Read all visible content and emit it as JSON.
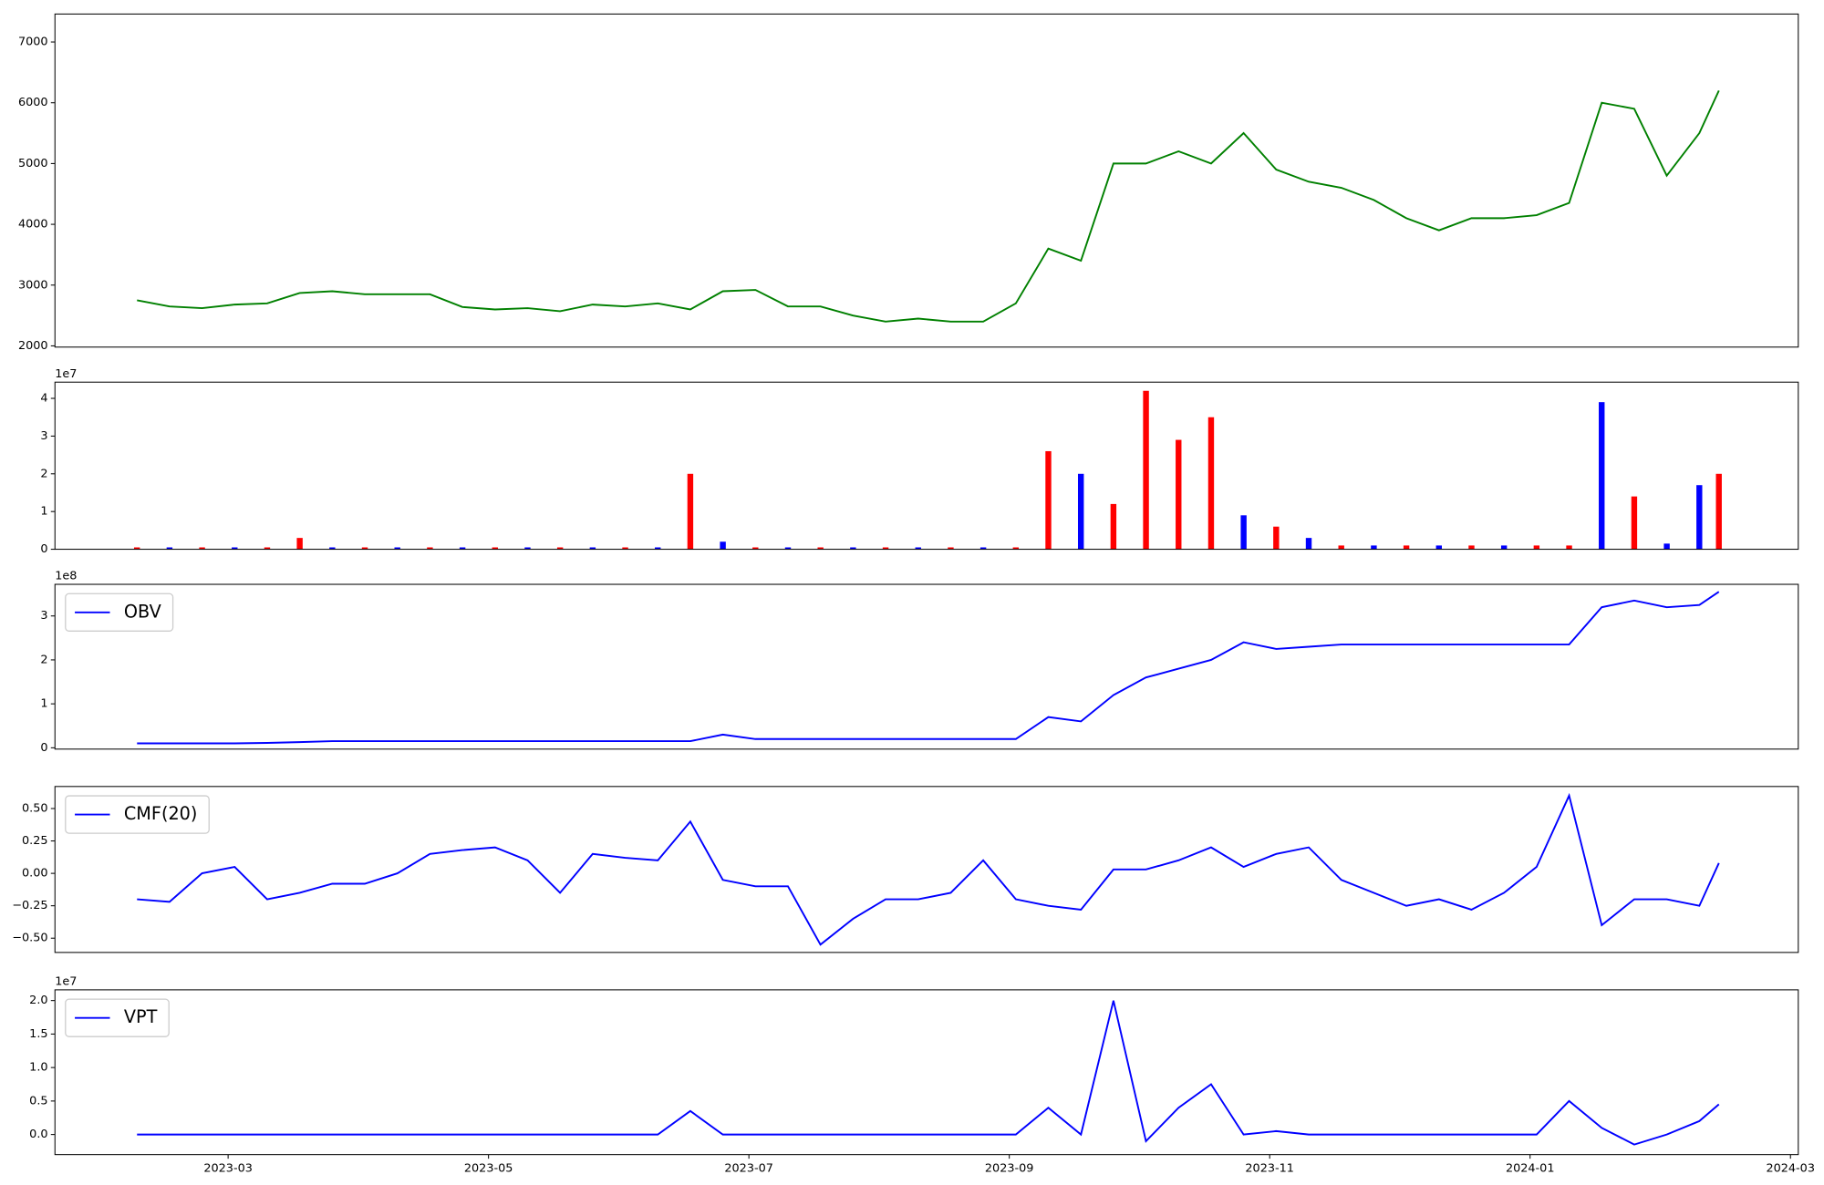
{
  "chart_data": [
    {
      "type": "line",
      "xlim": [
        0.67,
        14.06
      ],
      "ylim": [
        1980,
        7460
      ],
      "yticks": [
        2000,
        3000,
        4000,
        5000,
        6000,
        7000
      ],
      "x": [
        1.3,
        1.55,
        1.8,
        2.05,
        2.3,
        2.55,
        2.8,
        3.05,
        3.3,
        3.55,
        3.8,
        4.05,
        4.3,
        4.55,
        4.8,
        5.05,
        5.3,
        5.55,
        5.8,
        6.05,
        6.3,
        6.55,
        6.8,
        7.05,
        7.3,
        7.55,
        7.8,
        8.05,
        8.3,
        8.55,
        8.8,
        9.05,
        9.3,
        9.55,
        9.8,
        10.05,
        10.3,
        10.55,
        10.8,
        11.05,
        11.3,
        11.55,
        11.8,
        12.05,
        12.3,
        12.55,
        12.8,
        13.05,
        13.3,
        13.45
      ],
      "series": [
        {
          "color": "#008000",
          "values": [
            2750,
            2650,
            2620,
            2680,
            2700,
            2870,
            2900,
            2850,
            2850,
            2850,
            2640,
            2600,
            2620,
            2570,
            2680,
            2650,
            2700,
            2600,
            2900,
            2920,
            2650,
            2650,
            2500,
            2400,
            2450,
            2400,
            2400,
            2700,
            3600,
            3400,
            5000,
            5000,
            5200,
            5000,
            5500,
            4900,
            4700,
            4600,
            4400,
            4100,
            3900,
            4100,
            4100,
            4150,
            4350,
            6000,
            5900,
            4800,
            5500,
            6200
          ]
        }
      ]
    },
    {
      "type": "bar",
      "offset_label": "1e7",
      "xlim": [
        0.67,
        14.06
      ],
      "ylim": [
        0,
        4.43
      ],
      "yticks": [
        0,
        1,
        2,
        3,
        4
      ],
      "x": [
        1.3,
        1.55,
        1.8,
        2.05,
        2.3,
        2.55,
        2.8,
        3.05,
        3.3,
        3.55,
        3.8,
        4.05,
        4.3,
        4.55,
        4.8,
        5.05,
        5.3,
        5.55,
        5.8,
        6.05,
        6.3,
        6.55,
        6.8,
        7.05,
        7.3,
        7.55,
        7.8,
        8.05,
        8.3,
        8.55,
        8.8,
        9.05,
        9.3,
        9.55,
        9.8,
        10.05,
        10.3,
        10.55,
        10.8,
        11.05,
        11.3,
        11.55,
        11.8,
        12.05,
        12.3,
        12.55,
        12.8,
        13.05,
        13.3,
        13.45
      ],
      "series": [
        {
          "values": [
            0.05,
            0.05,
            0.05,
            0.05,
            0.05,
            0.3,
            0.05,
            0.05,
            0.05,
            0.05,
            0.05,
            0.05,
            0.05,
            0.05,
            0.05,
            0.05,
            0.05,
            2.0,
            0.2,
            0.05,
            0.05,
            0.05,
            0.05,
            0.05,
            0.05,
            0.05,
            0.05,
            0.05,
            2.6,
            2.0,
            1.2,
            4.2,
            2.9,
            3.5,
            0.9,
            0.6,
            0.3,
            0.1,
            0.1,
            0.1,
            0.1,
            0.1,
            0.1,
            0.1,
            0.1,
            3.9,
            1.4,
            0.15,
            1.7,
            2.0
          ],
          "colors": [
            "#ff0000",
            "#0000ff",
            "#ff0000",
            "#0000ff",
            "#ff0000",
            "#ff0000",
            "#0000ff",
            "#ff0000",
            "#0000ff",
            "#ff0000",
            "#0000ff",
            "#ff0000",
            "#0000ff",
            "#ff0000",
            "#0000ff",
            "#ff0000",
            "#0000ff",
            "#ff0000",
            "#0000ff",
            "#ff0000",
            "#0000ff",
            "#ff0000",
            "#0000ff",
            "#ff0000",
            "#0000ff",
            "#ff0000",
            "#0000ff",
            "#ff0000",
            "#ff0000",
            "#0000ff",
            "#ff0000",
            "#ff0000",
            "#ff0000",
            "#ff0000",
            "#0000ff",
            "#ff0000",
            "#0000ff",
            "#ff0000",
            "#0000ff",
            "#ff0000",
            "#0000ff",
            "#ff0000",
            "#0000ff",
            "#ff0000",
            "#ff0000",
            "#0000ff",
            "#ff0000",
            "#0000ff",
            "#0000ff",
            "#ff0000"
          ]
        }
      ]
    },
    {
      "type": "line",
      "offset_label": "1e8",
      "legend": "upper left",
      "xlim": [
        0.67,
        14.06
      ],
      "ylim": [
        -0.03,
        3.72
      ],
      "yticks": [
        0,
        1,
        2,
        3
      ],
      "x": [
        1.3,
        1.55,
        1.8,
        2.05,
        2.3,
        2.55,
        2.8,
        3.05,
        3.3,
        3.55,
        3.8,
        4.05,
        4.3,
        4.55,
        4.8,
        5.05,
        5.3,
        5.55,
        5.8,
        6.05,
        6.3,
        6.55,
        6.8,
        7.05,
        7.3,
        7.55,
        7.8,
        8.05,
        8.3,
        8.55,
        8.8,
        9.05,
        9.3,
        9.55,
        9.8,
        10.05,
        10.3,
        10.55,
        10.8,
        11.05,
        11.3,
        11.55,
        11.8,
        12.05,
        12.3,
        12.55,
        12.8,
        13.05,
        13.3,
        13.45
      ],
      "series": [
        {
          "name": "OBV",
          "color": "#0000ff",
          "values": [
            0.1,
            0.1,
            0.1,
            0.1,
            0.11,
            0.13,
            0.15,
            0.15,
            0.15,
            0.15,
            0.15,
            0.15,
            0.15,
            0.15,
            0.15,
            0.15,
            0.15,
            0.15,
            0.3,
            0.2,
            0.2,
            0.2,
            0.2,
            0.2,
            0.2,
            0.2,
            0.2,
            0.2,
            0.7,
            0.6,
            1.2,
            1.6,
            1.8,
            2.0,
            2.4,
            2.25,
            2.3,
            2.35,
            2.35,
            2.35,
            2.35,
            2.35,
            2.35,
            2.35,
            2.35,
            3.2,
            3.35,
            3.2,
            3.25,
            3.55
          ]
        }
      ]
    },
    {
      "type": "line",
      "legend": "upper left",
      "xlim": [
        0.67,
        14.06
      ],
      "ylim": [
        -0.61,
        0.67
      ],
      "yticks": [
        {
          "value": -0.5,
          "label": "−0.50"
        },
        {
          "value": -0.25,
          "label": "−0.25"
        },
        {
          "value": 0,
          "label": "0.00"
        },
        {
          "value": 0.25,
          "label": "0.25"
        },
        {
          "value": 0.5,
          "label": "0.50"
        }
      ],
      "x": [
        1.3,
        1.55,
        1.8,
        2.05,
        2.3,
        2.55,
        2.8,
        3.05,
        3.3,
        3.55,
        3.8,
        4.05,
        4.3,
        4.55,
        4.8,
        5.05,
        5.3,
        5.55,
        5.8,
        6.05,
        6.3,
        6.55,
        6.8,
        7.05,
        7.3,
        7.55,
        7.8,
        8.05,
        8.3,
        8.55,
        8.8,
        9.05,
        9.3,
        9.55,
        9.8,
        10.05,
        10.3,
        10.55,
        10.8,
        11.05,
        11.3,
        11.55,
        11.8,
        12.05,
        12.3,
        12.55,
        12.8,
        13.05,
        13.3,
        13.45
      ],
      "series": [
        {
          "name": "CMF(20)",
          "color": "#0000ff",
          "values": [
            -0.2,
            -0.22,
            0.0,
            0.05,
            -0.2,
            -0.15,
            -0.08,
            -0.08,
            0.0,
            0.15,
            0.18,
            0.2,
            0.1,
            -0.15,
            0.15,
            0.12,
            0.1,
            0.4,
            -0.05,
            -0.1,
            -0.1,
            -0.55,
            -0.35,
            -0.2,
            -0.2,
            -0.15,
            0.1,
            -0.2,
            -0.25,
            -0.28,
            0.03,
            0.03,
            0.1,
            0.2,
            0.05,
            0.15,
            0.2,
            -0.05,
            -0.15,
            -0.25,
            -0.2,
            -0.28,
            -0.15,
            0.05,
            0.6,
            -0.4,
            -0.2,
            -0.2,
            -0.25,
            0.08
          ]
        }
      ]
    },
    {
      "type": "line",
      "offset_label": "1e7",
      "legend": "upper left",
      "xlim": [
        0.67,
        14.06
      ],
      "ylim": [
        -0.3,
        2.16
      ],
      "yticks": [
        {
          "value": 0,
          "label": "0.0"
        },
        0.5,
        {
          "value": 1,
          "label": "1.0"
        },
        1.5,
        {
          "value": 2,
          "label": "2.0"
        }
      ],
      "xticks": [
        {
          "value": 2,
          "label": "2023-03"
        },
        {
          "value": 4,
          "label": "2023-05"
        },
        {
          "value": 6,
          "label": "2023-07"
        },
        {
          "value": 8,
          "label": "2023-09"
        },
        {
          "value": 10,
          "label": "2023-11"
        },
        {
          "value": 12,
          "label": "2024-01"
        },
        {
          "value": 14,
          "label": "2024-03"
        }
      ],
      "x": [
        1.3,
        1.55,
        1.8,
        2.05,
        2.3,
        2.55,
        2.8,
        3.05,
        3.3,
        3.55,
        3.8,
        4.05,
        4.3,
        4.55,
        4.8,
        5.05,
        5.3,
        5.55,
        5.8,
        6.05,
        6.3,
        6.55,
        6.8,
        7.05,
        7.3,
        7.55,
        7.8,
        8.05,
        8.3,
        8.55,
        8.8,
        9.05,
        9.3,
        9.55,
        9.8,
        10.05,
        10.3,
        10.55,
        10.8,
        11.05,
        11.3,
        11.55,
        11.8,
        12.05,
        12.3,
        12.55,
        12.8,
        13.05,
        13.3,
        13.45
      ],
      "series": [
        {
          "name": "VPT",
          "color": "#0000ff",
          "values": [
            0,
            0,
            0,
            0,
            0,
            0,
            0,
            0,
            0,
            0,
            0,
            0,
            0,
            0,
            0,
            0,
            0,
            0.35,
            0,
            0,
            0,
            0,
            0,
            0,
            0,
            0,
            0,
            0,
            0.4,
            0,
            2.0,
            -0.1,
            0.4,
            0.75,
            0,
            0.05,
            0,
            0,
            0,
            0,
            0,
            0,
            0,
            0,
            0.5,
            0.1,
            -0.15,
            0,
            0.2,
            0.45
          ]
        }
      ]
    }
  ]
}
